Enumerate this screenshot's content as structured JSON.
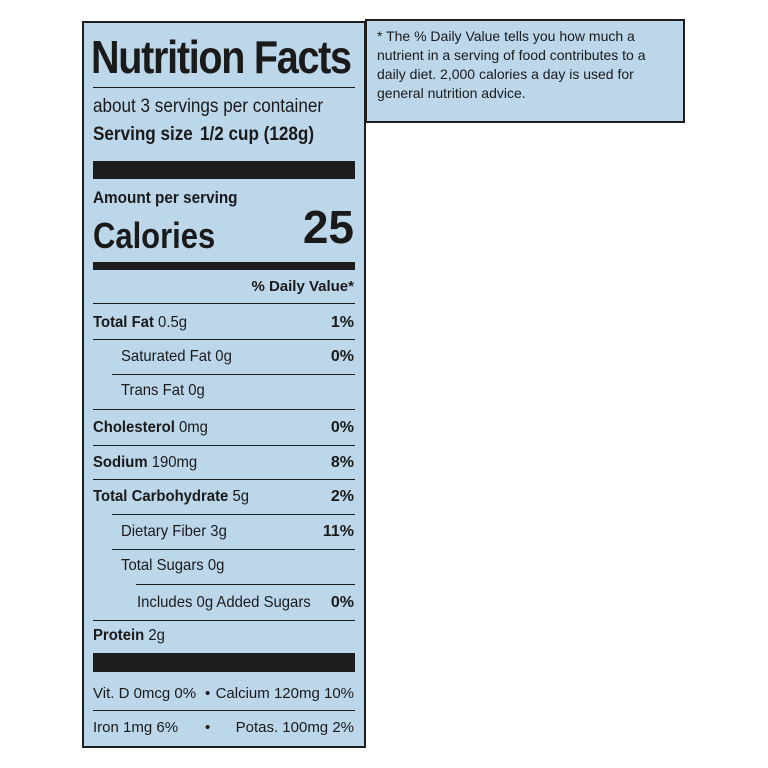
{
  "label": {
    "title": "Nutrition Facts",
    "servings": "about 3 servings per container",
    "serving_size_label": "Serving size",
    "serving_size_value": "1/2 cup (128g)",
    "amount_per_serving": "Amount per serving",
    "calories_label": "Calories",
    "calories_value": "25",
    "daily_value_header": "% Daily Value*",
    "nutrients": {
      "total_fat": {
        "name": "Total Fat",
        "amount": "0.5g",
        "dv": "1%"
      },
      "saturated_fat": {
        "name": "Saturated Fat",
        "amount": "0g",
        "dv": "0%"
      },
      "trans_fat": {
        "name": "Trans Fat",
        "amount": "0g"
      },
      "cholesterol": {
        "name": "Cholesterol",
        "amount": "0mg",
        "dv": "0%"
      },
      "sodium": {
        "name": "Sodium",
        "amount": "190mg",
        "dv": "8%"
      },
      "total_carb": {
        "name": "Total Carbohydrate",
        "amount": "5g",
        "dv": "2%"
      },
      "dietary_fiber": {
        "name": "Dietary Fiber",
        "amount": "3g",
        "dv": "11%"
      },
      "total_sugars": {
        "name": "Total Sugars",
        "amount": "0g"
      },
      "added_sugars": {
        "name": "Includes 0g Added Sugars",
        "dv": "0%"
      },
      "protein": {
        "name": "Protein",
        "amount": "2g"
      }
    },
    "vitamins": {
      "vitd": "Vit. D 0mcg 0%",
      "calcium": "Calcium 120mg 10%",
      "iron": "Iron 1mg 6%",
      "potassium": "Potas. 100mg 2%",
      "separator": "•"
    }
  },
  "footnote": "* The % Daily Value tells you how much a nutrient in a serving of food contributes to a daily diet. 2,000 calories a day is used for general nutrition advice.",
  "colors": {
    "panel_background": "#bcd6ea",
    "ink": "#1e1e1e"
  }
}
